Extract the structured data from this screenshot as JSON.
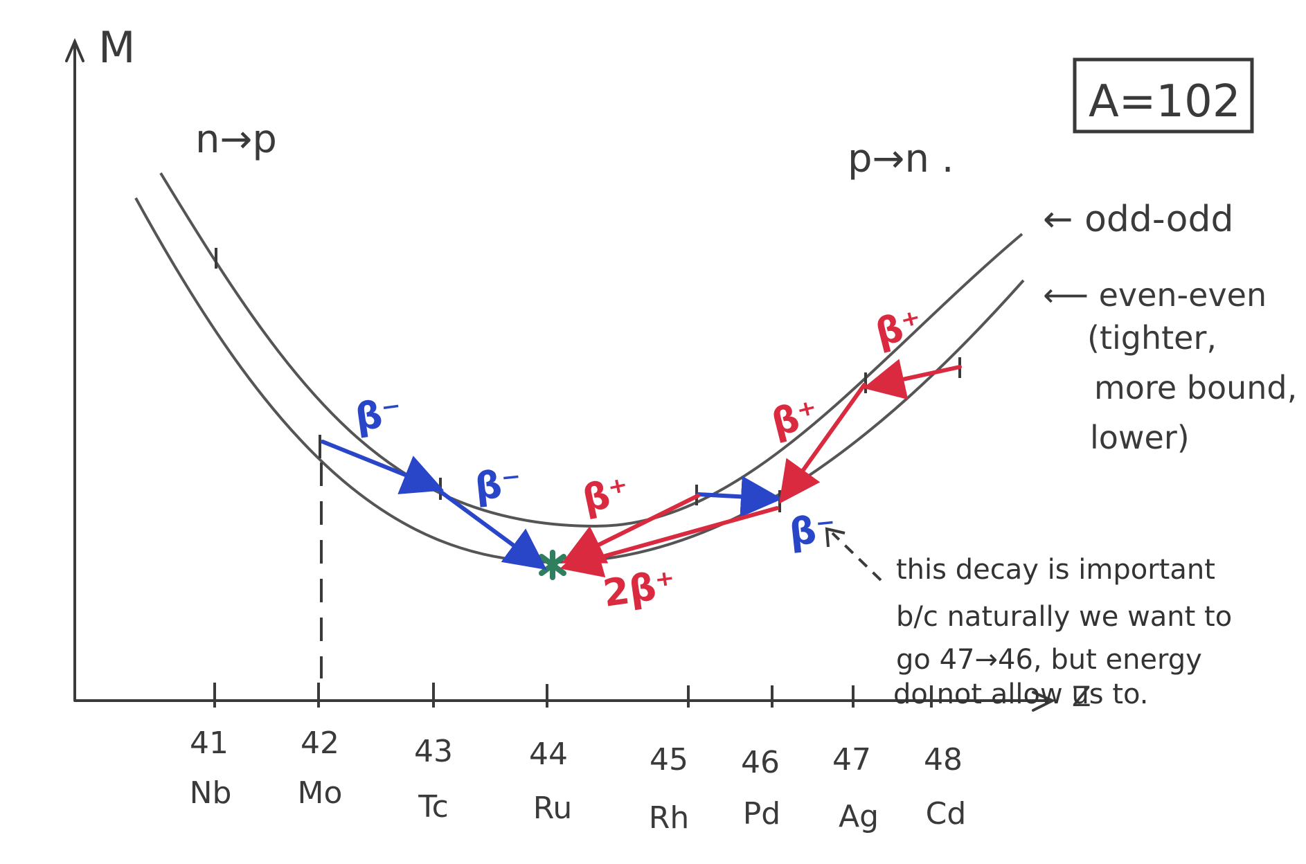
{
  "axes": {
    "y_label": "M",
    "x_label": "Z",
    "ticks": [
      {
        "z": "41",
        "symbol": "Nb"
      },
      {
        "z": "42",
        "symbol": "Mo"
      },
      {
        "z": "43",
        "symbol": "Tc"
      },
      {
        "z": "44",
        "symbol": "Ru"
      },
      {
        "z": "45",
        "symbol": "Rh"
      },
      {
        "z": "46",
        "symbol": "Pd"
      },
      {
        "z": "47",
        "symbol": "Ag"
      },
      {
        "z": "48",
        "symbol": "Cd"
      }
    ]
  },
  "box_label": "A=102",
  "left_region": "n→p",
  "right_region": "p→n .",
  "curve_labels": {
    "odd_odd": "← odd-odd",
    "even_even_lines": [
      "⟵ even-even",
      "(tighter,",
      "more bound,",
      "lower)"
    ]
  },
  "decays": {
    "beta_minus": "β⁻",
    "beta_plus": "β⁺",
    "double_beta_plus": "2β⁺"
  },
  "note_lines": [
    "this decay is important",
    "b/c naturally we want to",
    "go 47→46, but energy",
    "do not allow us to."
  ],
  "colors": {
    "ink": "#3a3a3a",
    "blue": "#2946c8",
    "red": "#d92a3f",
    "green": "#2f7f5f"
  }
}
